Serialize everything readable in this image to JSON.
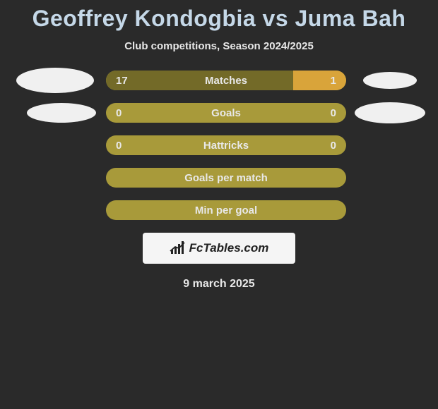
{
  "title": "Geoffrey Kondogbia vs Juma Bah",
  "subtitle": "Club competitions, Season 2024/2025",
  "colors": {
    "background": "#2a2a2a",
    "bar_empty": "#a89a3a",
    "bar_left": "#736a28",
    "bar_right": "#d9a43a",
    "text": "#e8e8e8",
    "title_text": "#c5d8e8",
    "oval": "#f0f0f0",
    "logo_bg": "#f5f5f5"
  },
  "bars": [
    {
      "label": "Matches",
      "left_value": "17",
      "right_value": "1",
      "left_pct": 78,
      "right_pct": 22,
      "show_ovals": true,
      "oval_left_class": "oval-left-1",
      "oval_right_class": "oval-right-1"
    },
    {
      "label": "Goals",
      "left_value": "0",
      "right_value": "0",
      "left_pct": 0,
      "right_pct": 0,
      "show_ovals": true,
      "oval_left_class": "oval-left-2",
      "oval_right_class": "oval-right-2"
    },
    {
      "label": "Hattricks",
      "left_value": "0",
      "right_value": "0",
      "left_pct": 0,
      "right_pct": 0,
      "show_ovals": false
    },
    {
      "label": "Goals per match",
      "left_value": "",
      "right_value": "",
      "left_pct": 0,
      "right_pct": 0,
      "show_ovals": false
    },
    {
      "label": "Min per goal",
      "left_value": "",
      "right_value": "",
      "left_pct": 0,
      "right_pct": 0,
      "show_ovals": false
    }
  ],
  "logo_text": "FcTables.com",
  "date": "9 march 2025"
}
